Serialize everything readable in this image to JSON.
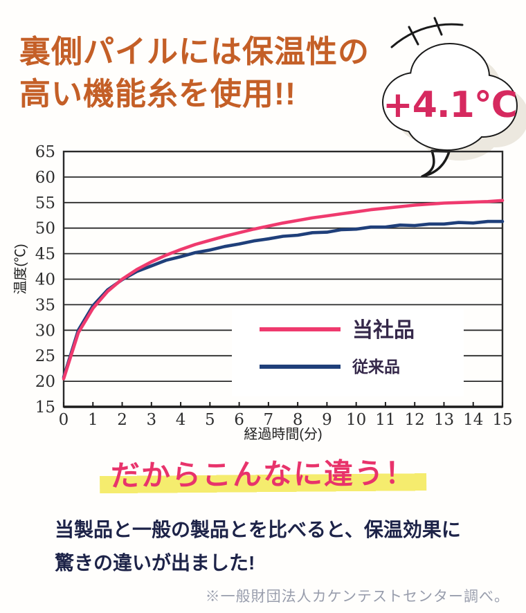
{
  "header": {
    "line1": "裏側パイルには保温性の",
    "line2": "高い機能糸を使用!!"
  },
  "bubble": {
    "text": "+4.1℃",
    "text_color": "#d6295f"
  },
  "chart_data": {
    "type": "line",
    "xlabel": "経過時間(分)",
    "ylabel": "温度(℃)",
    "xlim": [
      0,
      15
    ],
    "ylim": [
      15,
      65
    ],
    "x_ticks": [
      0,
      1,
      2,
      3,
      4,
      5,
      6,
      7,
      8,
      9,
      10,
      11,
      12,
      13,
      14,
      15
    ],
    "y_ticks": [
      15,
      20,
      25,
      30,
      35,
      40,
      45,
      50,
      55,
      60,
      65
    ],
    "grid": "horizontal",
    "legend_position": "inside-right",
    "x_step": 0.5,
    "series": [
      {
        "name": "当社品",
        "color": "#ef3a6e",
        "values": [
          20.5,
          29.5,
          34.3,
          37.6,
          40.0,
          41.9,
          43.4,
          44.7,
          45.8,
          46.8,
          47.6,
          48.4,
          49.1,
          49.8,
          50.4,
          51.0,
          51.5,
          52.0,
          52.4,
          52.8,
          53.2,
          53.6,
          53.9,
          54.2,
          54.5,
          54.7,
          54.9,
          55.0,
          55.1,
          55.2,
          55.4
        ]
      },
      {
        "name": "従来品",
        "color": "#1f3f7a",
        "values": [
          20.8,
          30.0,
          34.8,
          37.9,
          39.9,
          41.5,
          42.6,
          43.7,
          44.4,
          45.2,
          45.7,
          46.4,
          46.9,
          47.5,
          47.9,
          48.4,
          48.6,
          49.1,
          49.2,
          49.7,
          49.8,
          50.2,
          50.2,
          50.6,
          50.5,
          50.8,
          50.8,
          51.1,
          51.0,
          51.3,
          51.3
        ]
      }
    ]
  },
  "tagline": {
    "text": "だからこんなに違う！"
  },
  "body": {
    "line1": "当製品と一般の製品とを比べると、保温効果に",
    "line2": "驚きの違いが出ました!"
  },
  "footnote": {
    "text": "※一般財団法人カケンテストセンター調べ。"
  },
  "colors": {
    "heading_orange": "#c45f27",
    "bubble_pink": "#d6295f",
    "series_pink": "#ef3a6e",
    "series_navy": "#1f3f7a",
    "tagline_pink": "#e8336b",
    "highlight_yellow": "#f5ec6e",
    "body_navy": "#1d2348",
    "footnote_gray": "#989dac",
    "grid_dark": "#2a2a2a",
    "legend_text": "#35284a",
    "cloud_shadow": "#ece8df"
  }
}
